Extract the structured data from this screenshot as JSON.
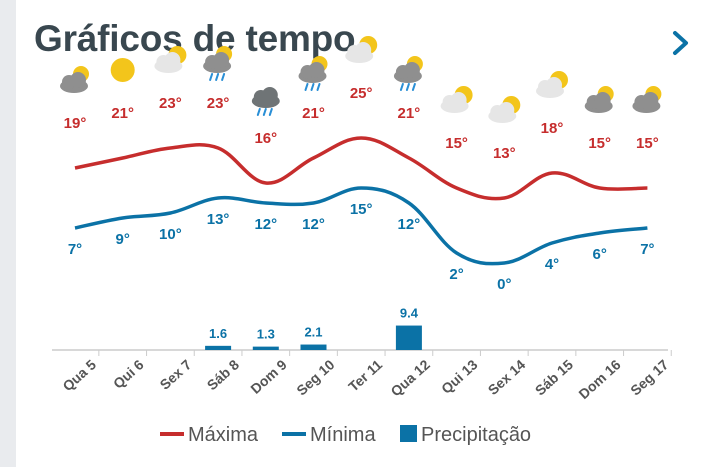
{
  "header": {
    "title": "Gráficos de tempo",
    "next_icon": "chevron-right-icon"
  },
  "colors": {
    "max": "#c62d2d",
    "min": "#0b72a6",
    "precip": "#0b72a6",
    "title": "#39474f"
  },
  "chart_data": {
    "type": "line",
    "categories": [
      "Qua 5",
      "Qui 6",
      "Sex 7",
      "Sáb 8",
      "Dom 9",
      "Seg 10",
      "Ter 11",
      "Qua 12",
      "Qui 13",
      "Sex 14",
      "Sáb 15",
      "Dom 16",
      "Seg 17"
    ],
    "icons": [
      "cloudy",
      "sunny",
      "partly-cloudy",
      "rain-sun",
      "rain",
      "rain-sun",
      "partly-cloudy",
      "rain-sun",
      "partly-cloudy",
      "partly-cloudy",
      "partly-cloudy",
      "cloudy",
      "cloudy"
    ],
    "series": [
      {
        "name": "Máxima",
        "values": [
          19,
          21,
          23,
          23,
          16,
          21,
          25,
          21,
          15,
          13,
          18,
          15,
          15
        ],
        "labels": [
          "19°",
          "21°",
          "23°",
          "23°",
          "16°",
          "21°",
          "25°",
          "21°",
          "15°",
          "13°",
          "18°",
          "15°",
          "15°"
        ]
      },
      {
        "name": "Mínima",
        "values": [
          7,
          9,
          10,
          13,
          12,
          12,
          15,
          12,
          2,
          0,
          4,
          6,
          7
        ],
        "labels": [
          "7°",
          "9°",
          "10°",
          "13°",
          "12°",
          "12°",
          "15°",
          "12°",
          "2°",
          "0°",
          "4°",
          "6°",
          "7°"
        ]
      },
      {
        "name": "Precipitação",
        "values": [
          0,
          0,
          0,
          1.6,
          1.3,
          2.1,
          0,
          9.4,
          0,
          0,
          0,
          0,
          0
        ],
        "labels": [
          "",
          "",
          "",
          "1.6",
          "1.3",
          "2.1",
          "",
          "9.4",
          "",
          "",
          "",
          "",
          ""
        ]
      }
    ],
    "legend": [
      "Máxima",
      "Mínima",
      "Precipitação"
    ],
    "legend_position": "bottom"
  }
}
